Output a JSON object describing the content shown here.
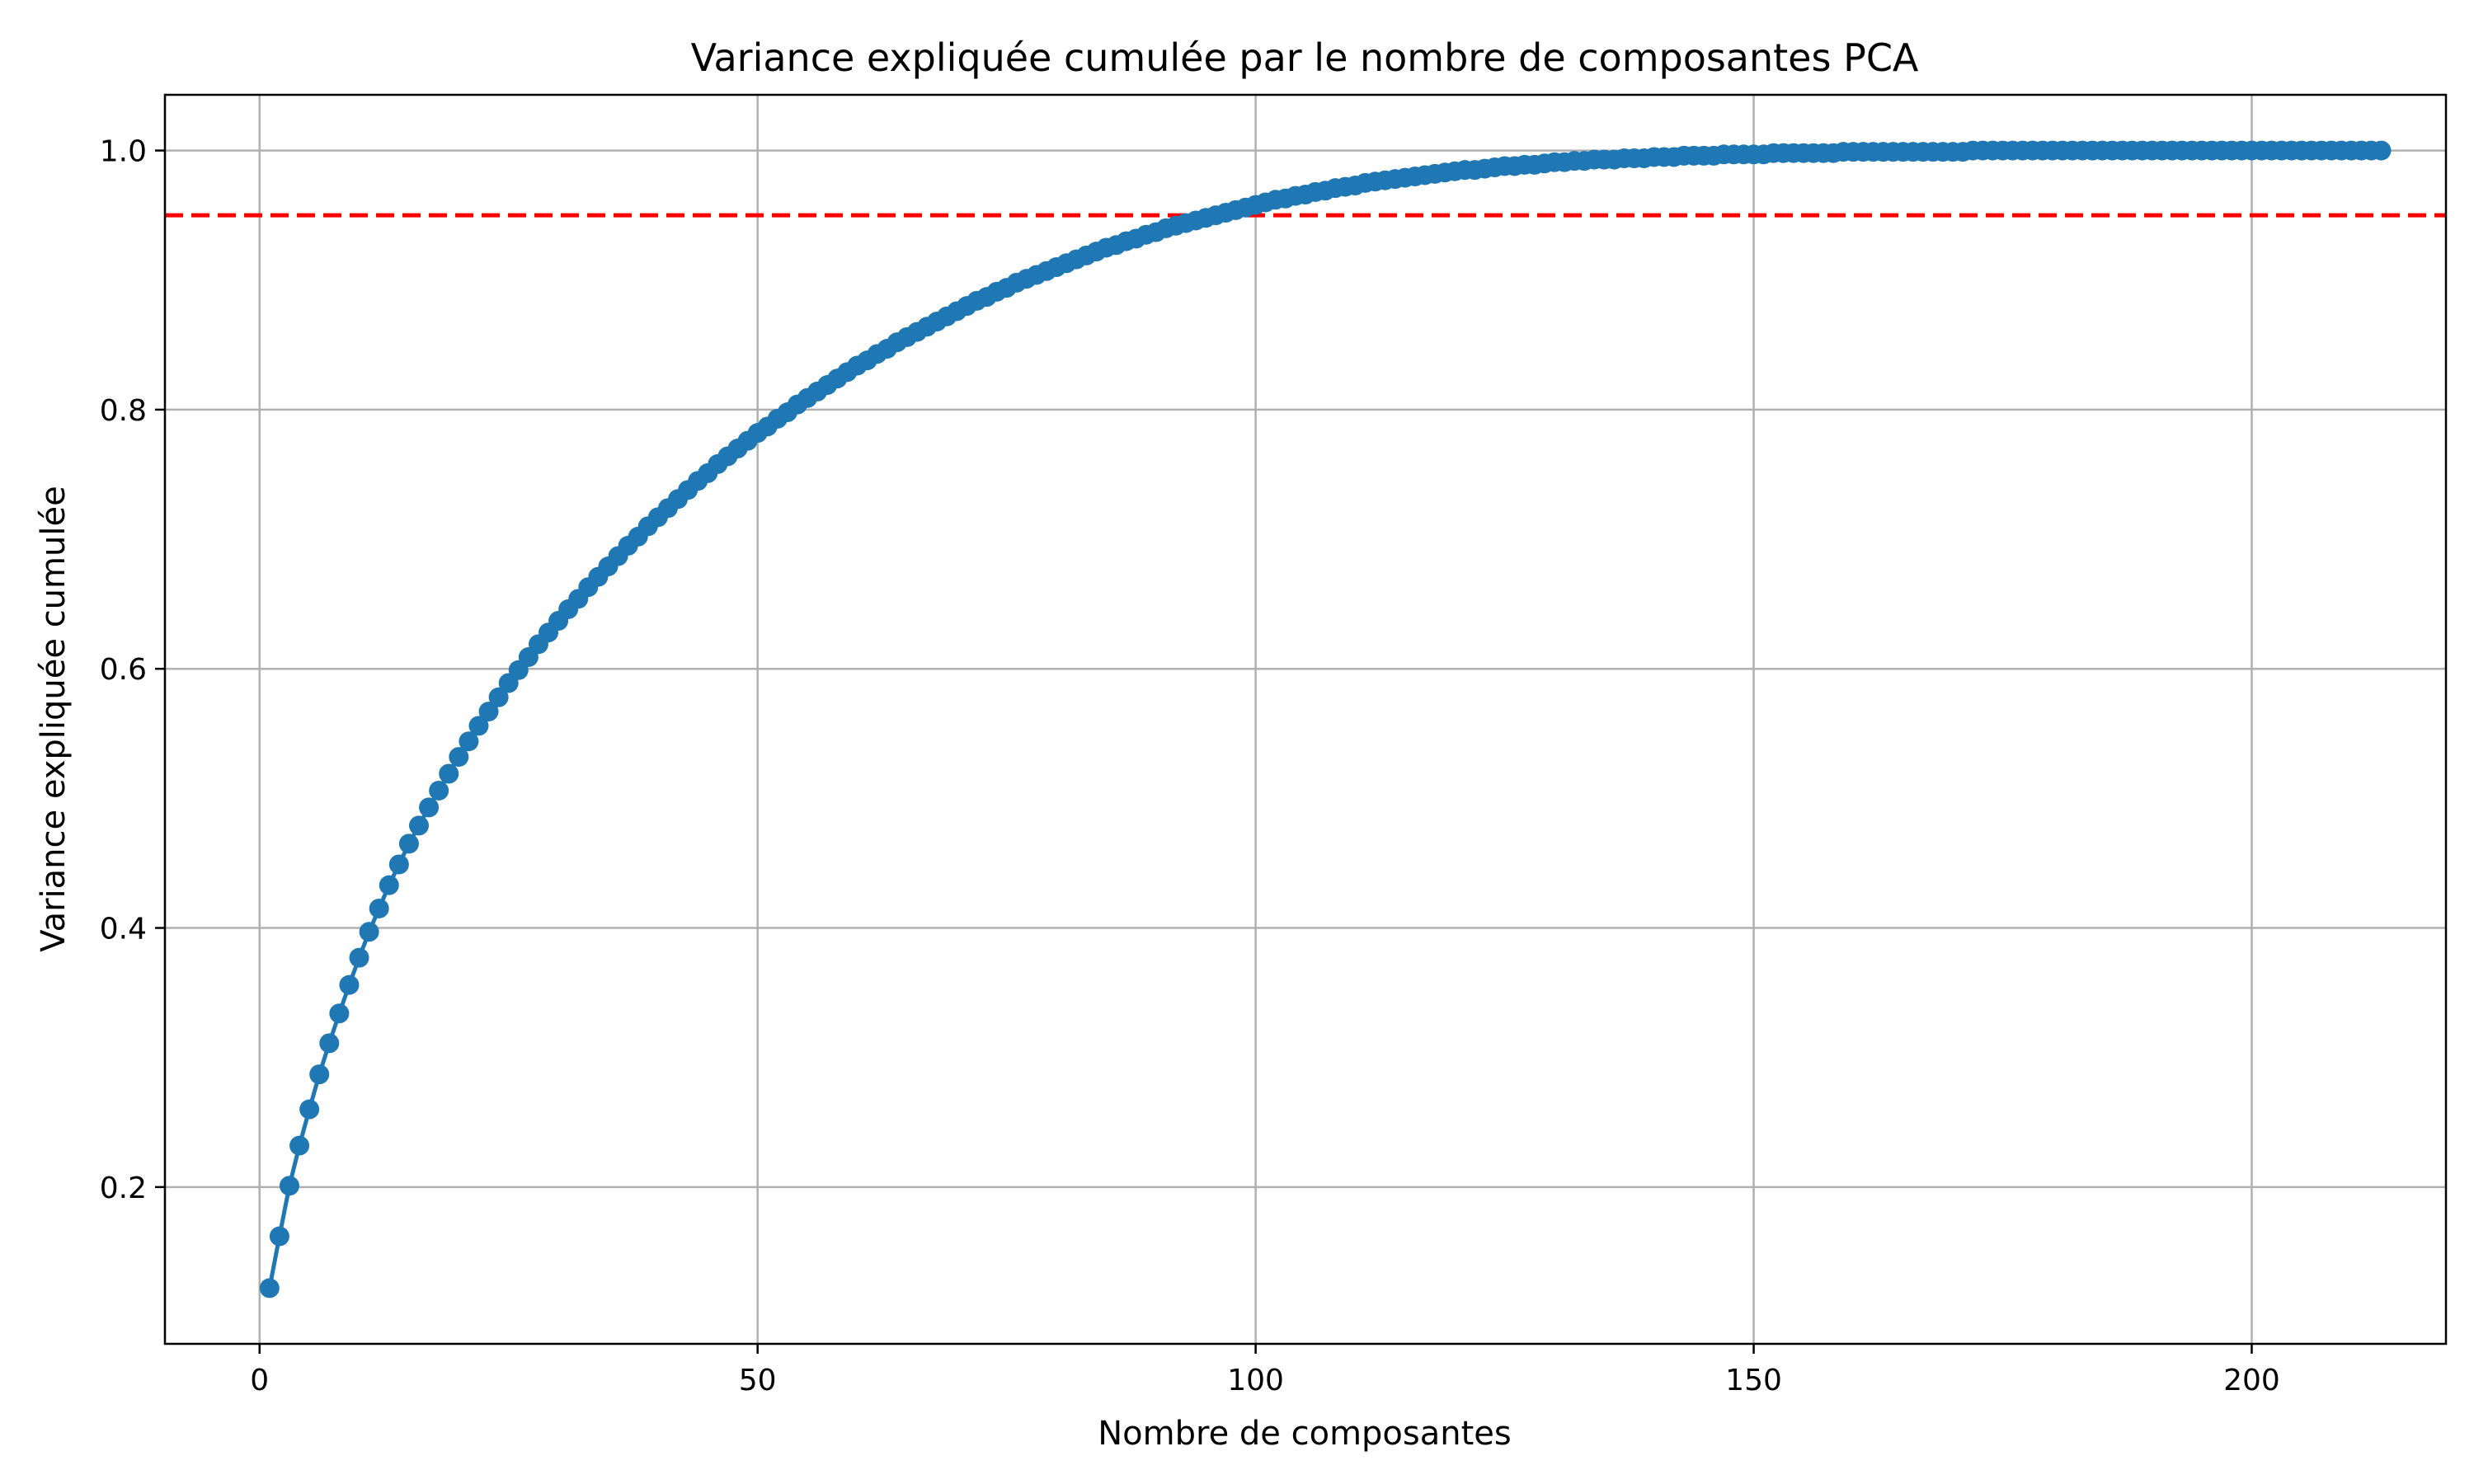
{
  "chart_data": {
    "type": "line",
    "title": "Variance expliquée cumulée par le nombre de composantes PCA",
    "xlabel": "Nombre de composantes",
    "ylabel": "Variance expliquée cumulée",
    "xlim": [
      -9.5,
      219.5
    ],
    "ylim": [
      0.079,
      1.043
    ],
    "xticks": [
      0,
      50,
      100,
      150,
      200
    ],
    "xtick_labels": [
      "0",
      "50",
      "100",
      "150",
      "200"
    ],
    "yticks": [
      0.2,
      0.4,
      0.6,
      0.8,
      1.0
    ],
    "ytick_labels": [
      "0.2",
      "0.4",
      "0.6",
      "0.8",
      "1.0"
    ],
    "grid": true,
    "series": [
      {
        "color": "#1f77b4",
        "marker": "circle",
        "x_start": 1,
        "x_step": 1,
        "values": [
          0.122,
          0.162,
          0.201,
          0.232,
          0.26,
          0.287,
          0.311,
          0.334,
          0.356,
          0.377,
          0.397,
          0.415,
          0.433,
          0.449,
          0.465,
          0.479,
          0.493,
          0.506,
          0.519,
          0.532,
          0.544,
          0.556,
          0.567,
          0.578,
          0.589,
          0.599,
          0.609,
          0.619,
          0.628,
          0.637,
          0.646,
          0.654,
          0.663,
          0.671,
          0.679,
          0.687,
          0.695,
          0.702,
          0.71,
          0.717,
          0.724,
          0.731,
          0.738,
          0.745,
          0.751,
          0.758,
          0.764,
          0.77,
          0.776,
          0.782,
          0.787,
          0.793,
          0.798,
          0.804,
          0.809,
          0.814,
          0.819,
          0.824,
          0.829,
          0.834,
          0.838,
          0.843,
          0.847,
          0.852,
          0.856,
          0.86,
          0.864,
          0.868,
          0.872,
          0.876,
          0.88,
          0.884,
          0.887,
          0.891,
          0.894,
          0.898,
          0.901,
          0.904,
          0.907,
          0.91,
          0.913,
          0.916,
          0.919,
          0.922,
          0.925,
          0.927,
          0.93,
          0.932,
          0.935,
          0.937,
          0.94,
          0.942,
          0.944,
          0.946,
          0.948,
          0.95,
          0.952,
          0.954,
          0.956,
          0.958,
          0.96,
          0.962,
          0.963,
          0.965,
          0.966,
          0.968,
          0.969,
          0.971,
          0.972,
          0.973,
          0.975,
          0.976,
          0.977,
          0.978,
          0.979,
          0.98,
          0.981,
          0.982,
          0.983,
          0.984,
          0.985,
          0.985,
          0.986,
          0.987,
          0.988,
          0.988,
          0.989,
          0.989,
          0.99,
          0.991,
          0.991,
          0.992,
          0.992,
          0.993,
          0.993,
          0.993,
          0.994,
          0.994,
          0.994,
          0.995,
          0.995,
          0.995,
          0.996,
          0.996,
          0.996,
          0.996,
          0.997,
          0.997,
          0.997,
          0.997,
          0.997,
          0.998,
          0.998,
          0.998,
          0.998,
          0.998,
          0.998,
          0.998,
          0.999,
          0.999,
          0.999,
          0.999,
          0.999,
          0.999,
          0.999,
          0.999,
          0.999,
          0.999,
          0.999,
          0.999,
          0.999,
          1.0,
          1.0,
          1.0,
          1.0,
          1.0,
          1.0,
          1.0,
          1.0,
          1.0,
          1.0,
          1.0,
          1.0,
          1.0,
          1.0,
          1.0,
          1.0,
          1.0,
          1.0,
          1.0,
          1.0,
          1.0,
          1.0,
          1.0,
          1.0,
          1.0,
          1.0,
          1.0,
          1.0,
          1.0,
          1.0,
          1.0,
          1.0,
          1.0,
          1.0,
          1.0,
          1.0,
          1.0,
          1.0,
          1.0,
          1.0,
          1.0,
          1.0
        ]
      }
    ],
    "reference_lines": [
      {
        "orientation": "horizontal",
        "y": 0.95,
        "color": "#ff0000",
        "style": "dashed"
      }
    ],
    "colors": {
      "series": "#1f77b4",
      "threshold": "#ff0000",
      "grid": "#b0b0b0",
      "axes": "#000000"
    }
  }
}
